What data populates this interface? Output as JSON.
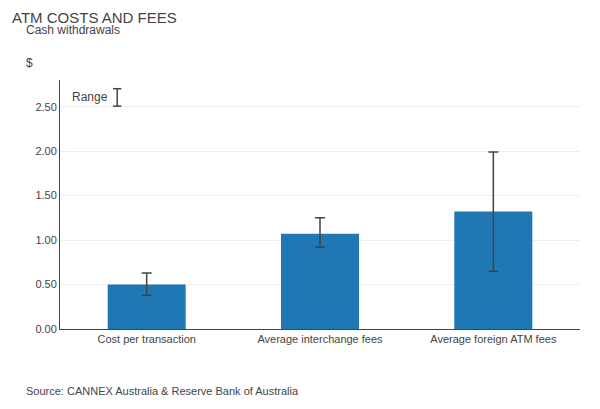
{
  "chart_data": {
    "type": "bar",
    "title": "ATM COSTS AND FEES",
    "subtitle": "Cash withdrawals",
    "ylabel": "$",
    "source": "Source: CANNEX Australia & Reserve Bank of Australia",
    "categories": [
      "Cost per transaction",
      "Average interchange fees",
      "Average foreign ATM fees"
    ],
    "values": [
      0.5,
      1.07,
      1.32
    ],
    "error_lower": [
      0.12,
      0.15,
      0.67
    ],
    "error_upper": [
      0.13,
      0.18,
      0.67
    ],
    "ylim": [
      0.0,
      2.8
    ],
    "yticks": [
      {
        "value": 0.0,
        "label": "0.00"
      },
      {
        "value": 0.5,
        "label": "0.50"
      },
      {
        "value": 1.0,
        "label": "1.00"
      },
      {
        "value": 1.5,
        "label": "1.50"
      },
      {
        "value": 2.0,
        "label": "2.00"
      },
      {
        "value": 2.5,
        "label": "2.50"
      }
    ],
    "grid": true,
    "annotations": [
      "Range"
    ]
  }
}
